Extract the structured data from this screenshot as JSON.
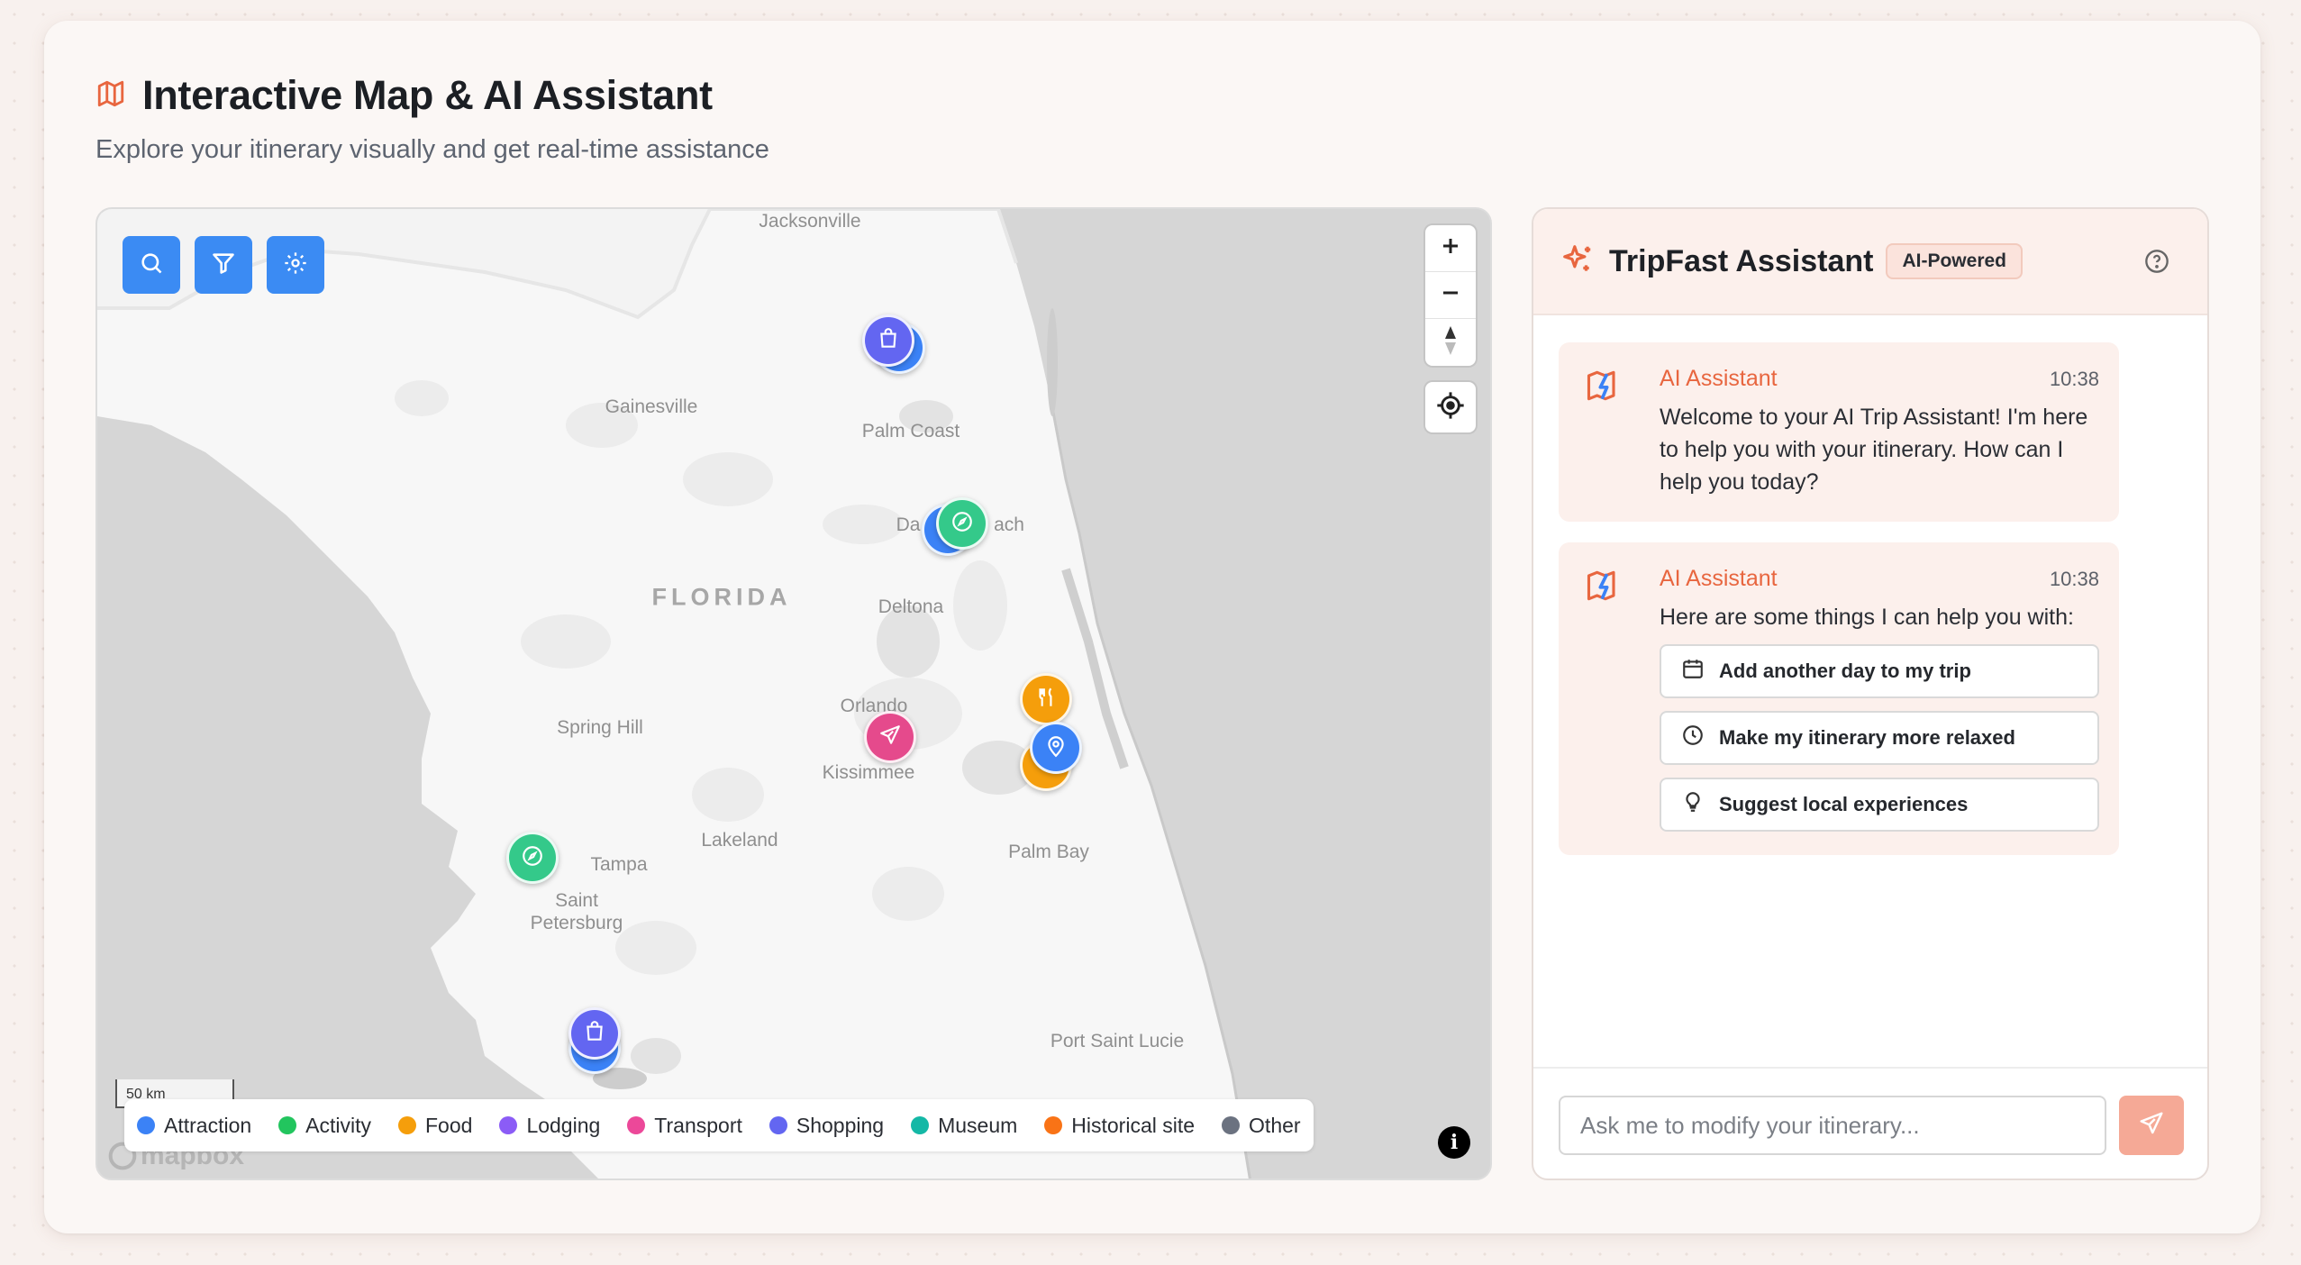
{
  "header": {
    "title": "Interactive Map & AI Assistant",
    "subtitle": "Explore your itinerary visually and get real-time assistance",
    "icon": "map-icon"
  },
  "map": {
    "toolbar": [
      "search-icon",
      "filter-icon",
      "settings-icon"
    ],
    "zoom_in": "+",
    "zoom_out": "−",
    "place_labels": {
      "jacksonville": "Jacksonville",
      "gainesville": "Gainesville",
      "palm_coast": "Palm Coast",
      "daytona": "Da",
      "daytona2": "ach",
      "florida": "FLORIDA",
      "deltona": "Deltona",
      "orlando": "Orlando",
      "spring_hill": "Spring Hill",
      "kissimmee": "Kissimmee",
      "lakeland": "Lakeland",
      "palm_bay": "Palm Bay",
      "tampa": "Tampa",
      "saint": "Saint",
      "petersburg": "Petersburg",
      "port_saint_lucie": "Port Saint Lucie"
    },
    "scale": "50 km",
    "attribution_logo": "mapbox",
    "info": "i",
    "legend": [
      {
        "label": "Attraction",
        "color": "#3b82f6"
      },
      {
        "label": "Activity",
        "color": "#22c55e"
      },
      {
        "label": "Food",
        "color": "#f59e0b"
      },
      {
        "label": "Lodging",
        "color": "#8b5cf6"
      },
      {
        "label": "Transport",
        "color": "#ec4899"
      },
      {
        "label": "Shopping",
        "color": "#6366f1"
      },
      {
        "label": "Museum",
        "color": "#14b8a6"
      },
      {
        "label": "Historical site",
        "color": "#f97316"
      },
      {
        "label": "Other",
        "color": "#6b7280"
      }
    ]
  },
  "assistant": {
    "title": "TripFast Assistant",
    "badge": "AI-Powered",
    "messages": [
      {
        "sender": "AI Assistant",
        "time": "10:38",
        "text": "Welcome to your AI Trip Assistant! I'm here to help you with your itinerary. How can I help you today?"
      },
      {
        "sender": "AI Assistant",
        "time": "10:38",
        "text": "Here are some things I can help you with:",
        "suggestions": [
          {
            "label": "Add another day to my trip",
            "icon": "calendar-icon"
          },
          {
            "label": "Make my itinerary more relaxed",
            "icon": "clock-icon"
          },
          {
            "label": "Suggest local experiences",
            "icon": "lightbulb-icon"
          }
        ]
      }
    ],
    "input_placeholder": "Ask me to modify your itinerary...",
    "accent": "#e8663f"
  }
}
